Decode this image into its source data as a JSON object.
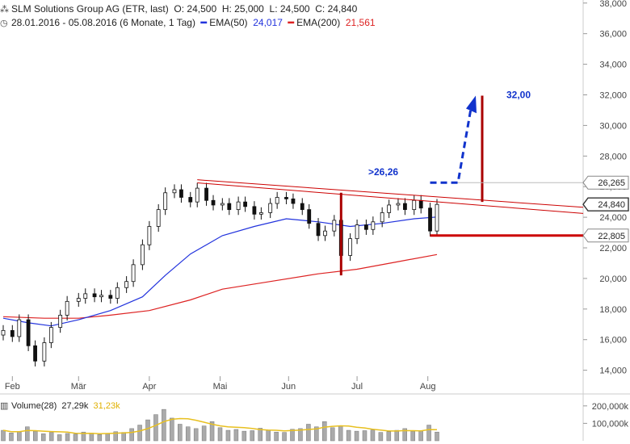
{
  "header": {
    "line1": {
      "icon": "chart-settings-icon",
      "title": "SLM Solutions Group AG (ETR, last)",
      "open": "O: 24,500",
      "high": "H: 25,000",
      "low": "L: 24,500",
      "close": "C: 24,840"
    },
    "line2": {
      "icon": "clock-icon",
      "range": "28.01.2016 - 05.08.2016 (6 Monate, 1 Tag)",
      "ema50_label": "EMA(50)",
      "ema50_value": "24,017",
      "ema200_label": "EMA(200)",
      "ema200_value": "21,561"
    }
  },
  "volume_header": {
    "icon": "volume-bars-icon",
    "label": "Volume(28)",
    "value1": "27,29k",
    "value2": "31,23k"
  },
  "colors": {
    "ema50": "#2233dd",
    "ema200": "#dd2222",
    "annot_red": "#cc0000",
    "annot_blue": "#1133cc",
    "vol_avg": "#e8c020",
    "volume_bar": "#aaaaaa"
  },
  "chart_data": {
    "type": "candlestick",
    "y_axis": {
      "ticks": [
        "38,000",
        "36,000",
        "34,000",
        "32,000",
        "30,000",
        "28,000",
        "26,000",
        "24,000",
        "22,000",
        "20,000",
        "18,000",
        "16,000",
        "14,000"
      ],
      "tick_values": [
        38,
        36,
        34,
        32,
        30,
        28,
        26,
        24,
        22,
        20,
        18,
        16,
        14
      ],
      "range": [
        13.4,
        38.2
      ]
    },
    "x_axis": {
      "labels": [
        "Feb",
        "Mär",
        "Apr",
        "Mai",
        "Jun",
        "Jul",
        "Aug"
      ],
      "dates": [
        "2016-02-01",
        "2016-03-01",
        "2016-04-01",
        "2016-05-02",
        "2016-06-01",
        "2016-07-01",
        "2016-08-01"
      ],
      "start": "2016-01-28",
      "end": "2016-08-05"
    },
    "price_badges": [
      {
        "value": 26.265,
        "label": "26,265",
        "style": "outline"
      },
      {
        "value": 24.84,
        "label": "24,840",
        "style": "outline-bold"
      },
      {
        "value": 22.805,
        "label": "22,805",
        "style": "outline"
      }
    ],
    "close_series": [
      [
        "2016-01-28",
        16.6
      ],
      [
        "2016-02-01",
        16.2
      ],
      [
        "2016-02-04",
        17.3
      ],
      [
        "2016-02-08",
        15.6
      ],
      [
        "2016-02-11",
        14.6
      ],
      [
        "2016-02-15",
        15.8
      ],
      [
        "2016-02-18",
        16.8
      ],
      [
        "2016-02-22",
        17.6
      ],
      [
        "2016-02-25",
        18.5
      ],
      [
        "2016-03-01",
        18.7
      ],
      [
        "2016-03-04",
        19.0
      ],
      [
        "2016-03-08",
        18.8
      ],
      [
        "2016-03-11",
        18.9
      ],
      [
        "2016-03-15",
        18.7
      ],
      [
        "2016-03-18",
        19.4
      ],
      [
        "2016-03-22",
        19.8
      ],
      [
        "2016-03-25",
        20.9
      ],
      [
        "2016-03-29",
        22.2
      ],
      [
        "2016-04-01",
        23.4
      ],
      [
        "2016-04-05",
        24.5
      ],
      [
        "2016-04-08",
        25.6
      ],
      [
        "2016-04-12",
        25.8
      ],
      [
        "2016-04-15",
        25.3
      ],
      [
        "2016-04-19",
        25.0
      ],
      [
        "2016-04-22",
        25.9
      ],
      [
        "2016-04-26",
        25.1
      ],
      [
        "2016-04-29",
        24.8
      ],
      [
        "2016-05-03",
        24.9
      ],
      [
        "2016-05-06",
        24.5
      ],
      [
        "2016-05-10",
        25.0
      ],
      [
        "2016-05-13",
        24.7
      ],
      [
        "2016-05-17",
        24.2
      ],
      [
        "2016-05-20",
        24.3
      ],
      [
        "2016-05-24",
        24.9
      ],
      [
        "2016-05-27",
        25.3
      ],
      [
        "2016-05-31",
        25.2
      ],
      [
        "2016-06-03",
        24.9
      ],
      [
        "2016-06-07",
        24.5
      ],
      [
        "2016-06-10",
        23.6
      ],
      [
        "2016-06-14",
        22.8
      ],
      [
        "2016-06-17",
        23.1
      ],
      [
        "2016-06-21",
        23.8
      ],
      [
        "2016-06-24",
        21.5
      ],
      [
        "2016-06-28",
        22.6
      ],
      [
        "2016-07-01",
        23.5
      ],
      [
        "2016-07-05",
        23.2
      ],
      [
        "2016-07-08",
        23.7
      ],
      [
        "2016-07-12",
        24.3
      ],
      [
        "2016-07-15",
        24.8
      ],
      [
        "2016-07-19",
        24.9
      ],
      [
        "2016-07-22",
        24.5
      ],
      [
        "2016-07-26",
        25.1
      ],
      [
        "2016-07-29",
        24.6
      ],
      [
        "2016-08-02",
        23.1
      ],
      [
        "2016-08-05",
        24.84
      ]
    ],
    "ema50": [
      [
        "2016-01-28",
        17.4
      ],
      [
        "2016-02-08",
        17.1
      ],
      [
        "2016-02-18",
        16.9
      ],
      [
        "2016-03-01",
        17.3
      ],
      [
        "2016-03-15",
        17.9
      ],
      [
        "2016-03-29",
        18.8
      ],
      [
        "2016-04-08",
        20.2
      ],
      [
        "2016-04-19",
        21.6
      ],
      [
        "2016-05-03",
        22.8
      ],
      [
        "2016-05-17",
        23.4
      ],
      [
        "2016-05-31",
        23.9
      ],
      [
        "2016-06-14",
        23.7
      ],
      [
        "2016-06-28",
        23.4
      ],
      [
        "2016-07-12",
        23.6
      ],
      [
        "2016-07-26",
        23.9
      ],
      [
        "2016-08-05",
        24.017
      ]
    ],
    "ema200": [
      [
        "2016-01-28",
        17.5
      ],
      [
        "2016-02-15",
        17.4
      ],
      [
        "2016-03-01",
        17.4
      ],
      [
        "2016-03-15",
        17.6
      ],
      [
        "2016-04-01",
        17.9
      ],
      [
        "2016-04-19",
        18.6
      ],
      [
        "2016-05-03",
        19.3
      ],
      [
        "2016-05-24",
        19.8
      ],
      [
        "2016-06-14",
        20.3
      ],
      [
        "2016-07-01",
        20.6
      ],
      [
        "2016-07-19",
        21.1
      ],
      [
        "2016-08-05",
        21.561
      ]
    ],
    "volume": {
      "axis_ticks": [
        "200,000k",
        "100,000k"
      ],
      "tick_values": [
        200000,
        100000
      ],
      "range_max": 250000,
      "values": [
        60,
        45,
        50,
        80,
        55,
        40,
        48,
        35,
        42,
        38,
        50,
        44,
        36,
        40,
        52,
        48,
        70,
        90,
        120,
        150,
        180,
        130,
        95,
        80,
        70,
        85,
        110,
        75,
        60,
        65,
        55,
        58,
        72,
        60,
        50,
        48,
        66,
        70,
        95,
        80,
        110,
        75,
        85,
        60,
        55,
        58,
        62,
        48,
        52,
        60,
        70,
        55,
        58,
        90,
        50
      ]
    }
  },
  "annotations": {
    "target_text": "32,00",
    "breakout_text": ">26,26"
  }
}
